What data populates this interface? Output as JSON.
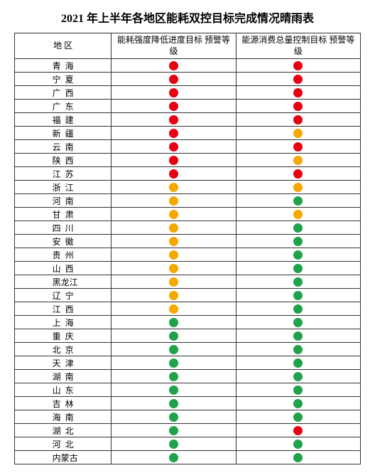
{
  "title": "2021 年上半年各地区能耗双控目标完成情况晴雨表",
  "columns": {
    "region": "地  区",
    "col1": "能耗强度降低进度目标\n预警等级",
    "col2": "能源消费总量控制目标\n预警等级"
  },
  "colors": {
    "red": "#e60012",
    "amber": "#f6a800",
    "green": "#1fa24a",
    "border": "#333333",
    "background": "#ffffff"
  },
  "rows": [
    {
      "region": "青 海",
      "c1": "red",
      "c2": "red"
    },
    {
      "region": "宁 夏",
      "c1": "red",
      "c2": "red"
    },
    {
      "region": "广 西",
      "c1": "red",
      "c2": "red"
    },
    {
      "region": "广 东",
      "c1": "red",
      "c2": "red"
    },
    {
      "region": "福 建",
      "c1": "red",
      "c2": "red"
    },
    {
      "region": "新 疆",
      "c1": "red",
      "c2": "amber"
    },
    {
      "region": "云 南",
      "c1": "red",
      "c2": "red"
    },
    {
      "region": "陕 西",
      "c1": "red",
      "c2": "amber"
    },
    {
      "region": "江 苏",
      "c1": "red",
      "c2": "red"
    },
    {
      "region": "浙 江",
      "c1": "amber",
      "c2": "amber"
    },
    {
      "region": "河 南",
      "c1": "amber",
      "c2": "green"
    },
    {
      "region": "甘 肃",
      "c1": "amber",
      "c2": "amber"
    },
    {
      "region": "四 川",
      "c1": "amber",
      "c2": "green"
    },
    {
      "region": "安 徽",
      "c1": "amber",
      "c2": "green"
    },
    {
      "region": "贵 州",
      "c1": "amber",
      "c2": "green"
    },
    {
      "region": "山 西",
      "c1": "amber",
      "c2": "green"
    },
    {
      "region": "黑龙江",
      "c1": "amber",
      "c2": "green"
    },
    {
      "region": "辽 宁",
      "c1": "amber",
      "c2": "green"
    },
    {
      "region": "江 西",
      "c1": "amber",
      "c2": "green"
    },
    {
      "region": "上 海",
      "c1": "green",
      "c2": "green"
    },
    {
      "region": "重 庆",
      "c1": "green",
      "c2": "green"
    },
    {
      "region": "北 京",
      "c1": "green",
      "c2": "green"
    },
    {
      "region": "天 津",
      "c1": "green",
      "c2": "green"
    },
    {
      "region": "湖 南",
      "c1": "green",
      "c2": "green"
    },
    {
      "region": "山 东",
      "c1": "green",
      "c2": "green"
    },
    {
      "region": "吉 林",
      "c1": "green",
      "c2": "green"
    },
    {
      "region": "海 南",
      "c1": "green",
      "c2": "green"
    },
    {
      "region": "湖 北",
      "c1": "green",
      "c2": "red"
    },
    {
      "region": "河 北",
      "c1": "green",
      "c2": "green"
    },
    {
      "region": "内蒙古",
      "c1": "green",
      "c2": "green"
    }
  ]
}
